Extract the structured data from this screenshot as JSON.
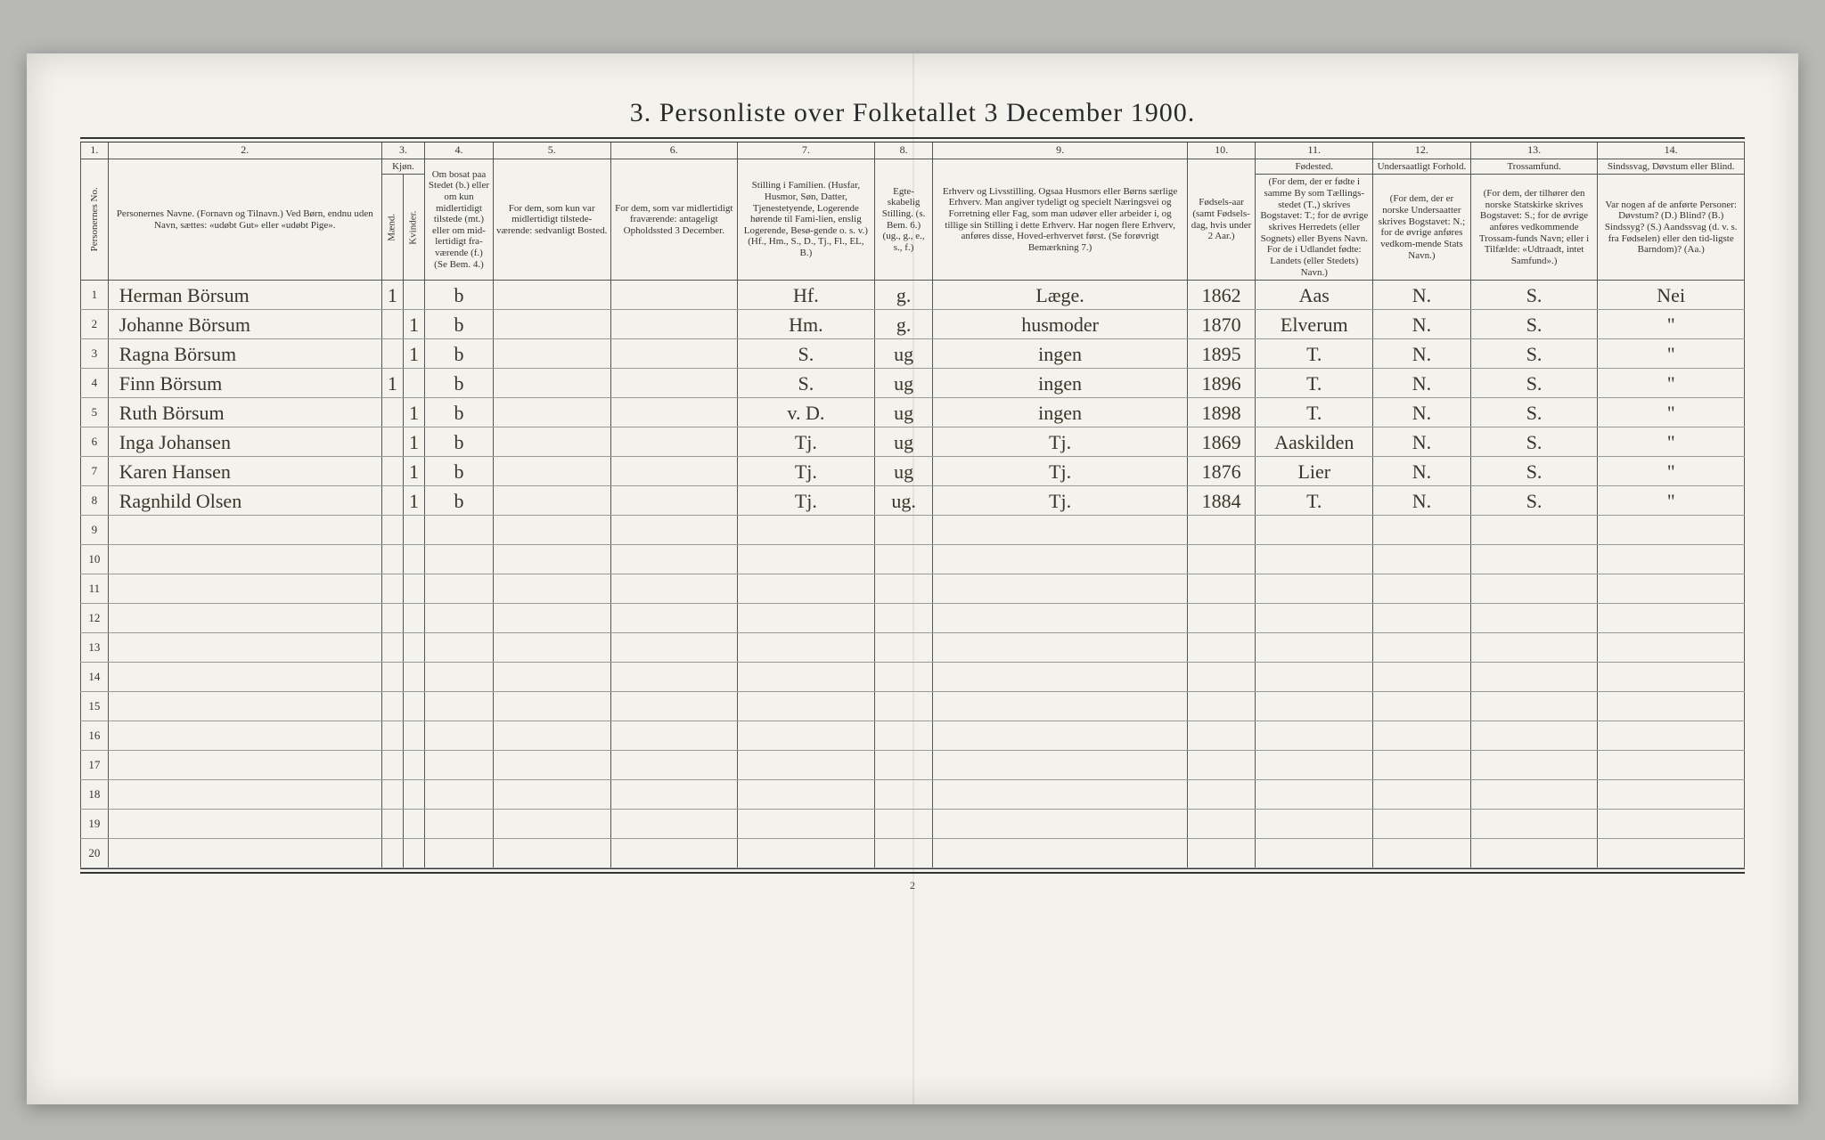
{
  "title": "3. Personliste over Folketallet 3 December 1900.",
  "page_number": "2",
  "colnums": [
    "1.",
    "2.",
    "3.",
    "4.",
    "5.",
    "6.",
    "7.",
    "8.",
    "9.",
    "10.",
    "11.",
    "12.",
    "13.",
    "14."
  ],
  "headers": {
    "c1": "Personernes No.",
    "c2": "Personernes Navne.\n(Fornavn og Tilnavn.)\nVed Børn, endnu uden Navn, sættes: «udøbt Gut» eller «udøbt Pige».",
    "c3_top": "Kjøn.",
    "c3a": "Mænd.",
    "c3b": "Kvinder.",
    "c4_top": "Om bosat paa Stedet (b.) eller om kun midlertidigt tilstede (mt.) eller om mid-lertidigt fra-værende (f.)\n(Se Bem. 4.)",
    "c5": "For dem, som kun var midlertidigt tilstede-værende:\nsedvanligt Bosted.",
    "c6": "For dem, som var midlertidigt fraværende:\nantageligt Opholdssted 3 December.",
    "c7": "Stilling i Familien.\n(Husfar, Husmor, Søn, Datter, Tjenestetyende, Logerende hørende til Fami-lien, enslig Logerende, Besø-gende o. s. v.)\n(Hf., Hm., S., D., Tj., Fl., EL, B.)",
    "c8": "Egte-skabelig Stilling.\n(s. Bem. 6.)\n(ug., g., e., s., f.)",
    "c9": "Erhverv og Livsstilling.\nOgsaa Husmors eller Børns særlige Erhverv. Man angiver tydeligt og specielt Næringsvei og Forretning eller Fag, som man udøver eller arbeider i, og tillige sin Stilling i dette Erhverv. Har nogen flere Erhverv, anføres disse, Hoved-erhvervet først.\n(Se forøvrigt Bemærkning 7.)",
    "c10": "Fødsels-aar\n(samt Fødsels-dag, hvis under 2 Aar.)",
    "c11_top": "Fødested.",
    "c11": "(For dem, der er fødte i samme By som Tællings-stedet (T.,) skrives Bogstavet: T.; for de øvrige skrives Herredets (eller Sognets) eller Byens Navn. For de i Udlandet fødte: Landets (eller Stedets) Navn.)",
    "c12_top": "Undersaatligt Forhold.",
    "c12": "(For dem, der er norske Undersaatter skrives Bogstavet: N.; for de øvrige anføres vedkom-mende Stats Navn.)",
    "c13_top": "Trossamfund.",
    "c13": "(For dem, der tilhører den norske Statskirke skrives Bogstavet: S.; for de øvrige anføres vedkommende Trossam-funds Navn; eller i Tilfælde: «Udtraadt, intet Samfund».)",
    "c14_top": "Sindssvag, Døvstum eller Blind.",
    "c14": "Var nogen af de anførte Personer:\nDøvstum? (D.)\nBlind? (B.)\nSindssyg? (S.)\nAandssvag (d. v. s. fra Fødselen) eller den tid-ligste Barndom)? (Aa.)"
  },
  "rows": [
    {
      "n": "1",
      "name": "Herman Börsum",
      "m": "1",
      "k": "",
      "res": "b",
      "c7": "Hf.",
      "c8": "g.",
      "c9": "Læge.",
      "c10": "1862",
      "c11": "Aas",
      "c12": "N.",
      "c13": "S.",
      "c14": "Nei"
    },
    {
      "n": "2",
      "name": "Johanne Börsum",
      "m": "",
      "k": "1",
      "res": "b",
      "c7": "Hm.",
      "c8": "g.",
      "c9": "husmoder",
      "c10": "1870",
      "c11": "Elverum",
      "c12": "N.",
      "c13": "S.",
      "c14": "\""
    },
    {
      "n": "3",
      "name": "Ragna Börsum",
      "m": "",
      "k": "1",
      "res": "b",
      "c7": "S.",
      "c8": "ug",
      "c9": "ingen",
      "c10": "1895",
      "c11": "T.",
      "c12": "N.",
      "c13": "S.",
      "c14": "\""
    },
    {
      "n": "4",
      "name": "Finn Börsum",
      "m": "1",
      "k": "",
      "res": "b",
      "c7": "S.",
      "c8": "ug",
      "c9": "ingen",
      "c10": "1896",
      "c11": "T.",
      "c12": "N.",
      "c13": "S.",
      "c14": "\""
    },
    {
      "n": "5",
      "name": "Ruth Börsum",
      "m": "",
      "k": "1",
      "res": "b",
      "c7": "v. D.",
      "c8": "ug",
      "c9": "ingen",
      "c10": "1898",
      "c11": "T.",
      "c12": "N.",
      "c13": "S.",
      "c14": "\""
    },
    {
      "n": "6",
      "name": "Inga Johansen",
      "m": "",
      "k": "1",
      "res": "b",
      "c7": "Tj.",
      "c8": "ug",
      "c9": "Tj.",
      "c10": "1869",
      "c11": "Aaskilden",
      "c12": "N.",
      "c13": "S.",
      "c14": "\""
    },
    {
      "n": "7",
      "name": "Karen Hansen",
      "m": "",
      "k": "1",
      "res": "b",
      "c7": "Tj.",
      "c8": "ug",
      "c9": "Tj.",
      "c10": "1876",
      "c11": "Lier",
      "c12": "N.",
      "c13": "S.",
      "c14": "\""
    },
    {
      "n": "8",
      "name": "Ragnhild Olsen",
      "m": "",
      "k": "1",
      "res": "b",
      "c7": "Tj.",
      "c8": "ug.",
      "c9": "Tj.",
      "c10": "1884",
      "c11": "T.",
      "c12": "N.",
      "c13": "S.",
      "c14": "\""
    }
  ],
  "empty_rows": [
    "9",
    "10",
    "11",
    "12",
    "13",
    "14",
    "15",
    "16",
    "17",
    "18",
    "19",
    "20"
  ],
  "colwidths": {
    "c1": "28px",
    "c2": "280px",
    "c3a": "22px",
    "c3b": "22px",
    "c4": "70px",
    "c5": "120px",
    "c6": "130px",
    "c7": "140px",
    "c8": "60px",
    "c9": "260px",
    "c10": "70px",
    "c11": "120px",
    "c12": "100px",
    "c13": "130px",
    "c14": "150px"
  }
}
